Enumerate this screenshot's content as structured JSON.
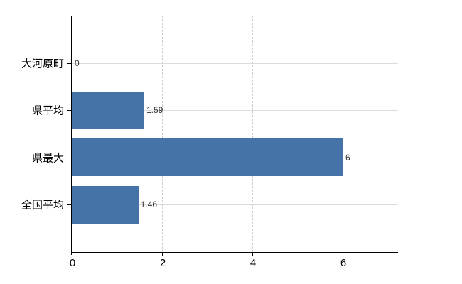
{
  "chart_data": {
    "type": "bar",
    "orientation": "horizontal",
    "title": "",
    "categories": [
      "大河原町",
      "県平均",
      "県最大",
      "全国平均"
    ],
    "values": [
      0,
      1.59,
      6,
      1.46
    ],
    "value_labels": [
      "0",
      "1.59",
      "6",
      "1.46"
    ],
    "xticks": [
      0,
      2,
      4,
      6
    ],
    "xtick_labels": [
      "0",
      "2",
      "4",
      "6"
    ],
    "xlim": [
      0,
      7.23
    ],
    "grid": true,
    "legend": "none",
    "colors": {
      "bar": "#4572a7",
      "axis": "#000000",
      "grid_dashed": "#cccccc",
      "row_line": "#d9ded9",
      "category_label": "#000000",
      "value_label": "#333333",
      "tick_label": "#000000"
    }
  }
}
